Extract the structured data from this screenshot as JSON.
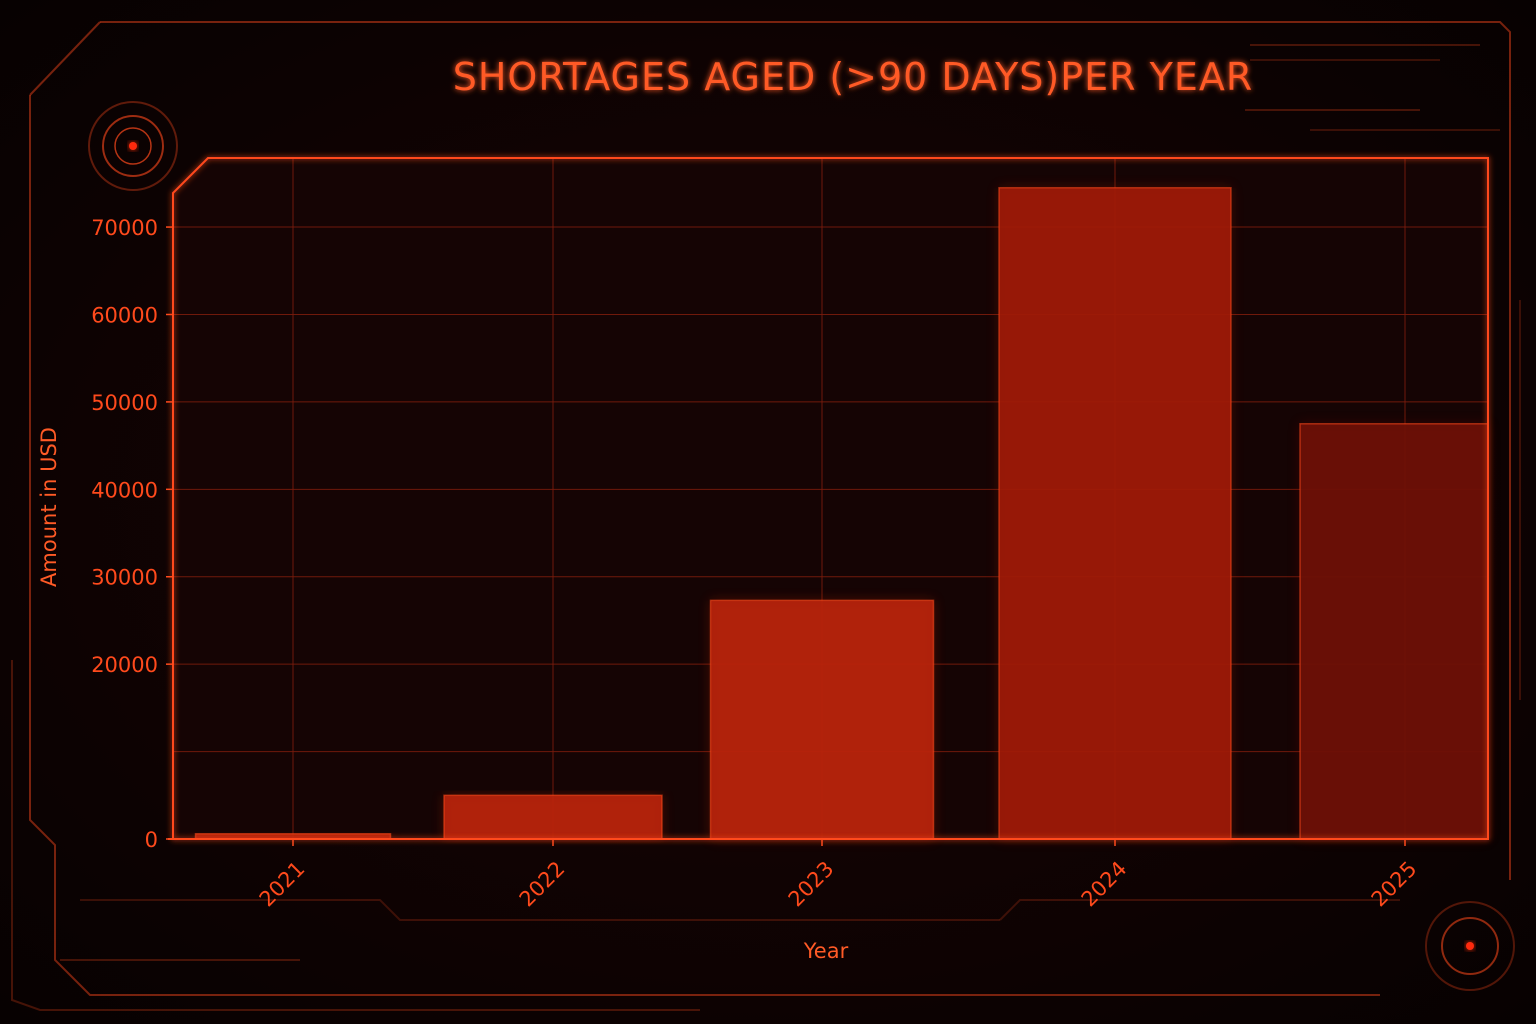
{
  "chart_data": {
    "type": "bar",
    "title": "SHORTAGES AGED (>90 DAYS)PER YEAR",
    "xlabel": "Year",
    "ylabel": "Amount in USD",
    "categories": [
      "2021",
      "2022",
      "2023",
      "2024",
      "2025"
    ],
    "values": [
      600,
      5000,
      27300,
      74500,
      47500
    ],
    "ylim": [
      0,
      77900
    ],
    "yticks": [
      "0",
      "20000",
      "30000",
      "40000",
      "50000",
      "60000",
      "70000"
    ],
    "ytick_values": [
      0,
      20000,
      30000,
      40000,
      50000,
      60000,
      70000
    ],
    "grid": true,
    "legend": "none"
  },
  "colors": {
    "background": "#0c0303",
    "plot_background": "#150404",
    "frame": "#ff4a1c",
    "grid": "#7a1c0c",
    "text": "#ff5a26",
    "bars": [
      "#b8240c",
      "#b8240c",
      "#b8240c",
      "#9e1a08",
      "#6e1006"
    ]
  }
}
